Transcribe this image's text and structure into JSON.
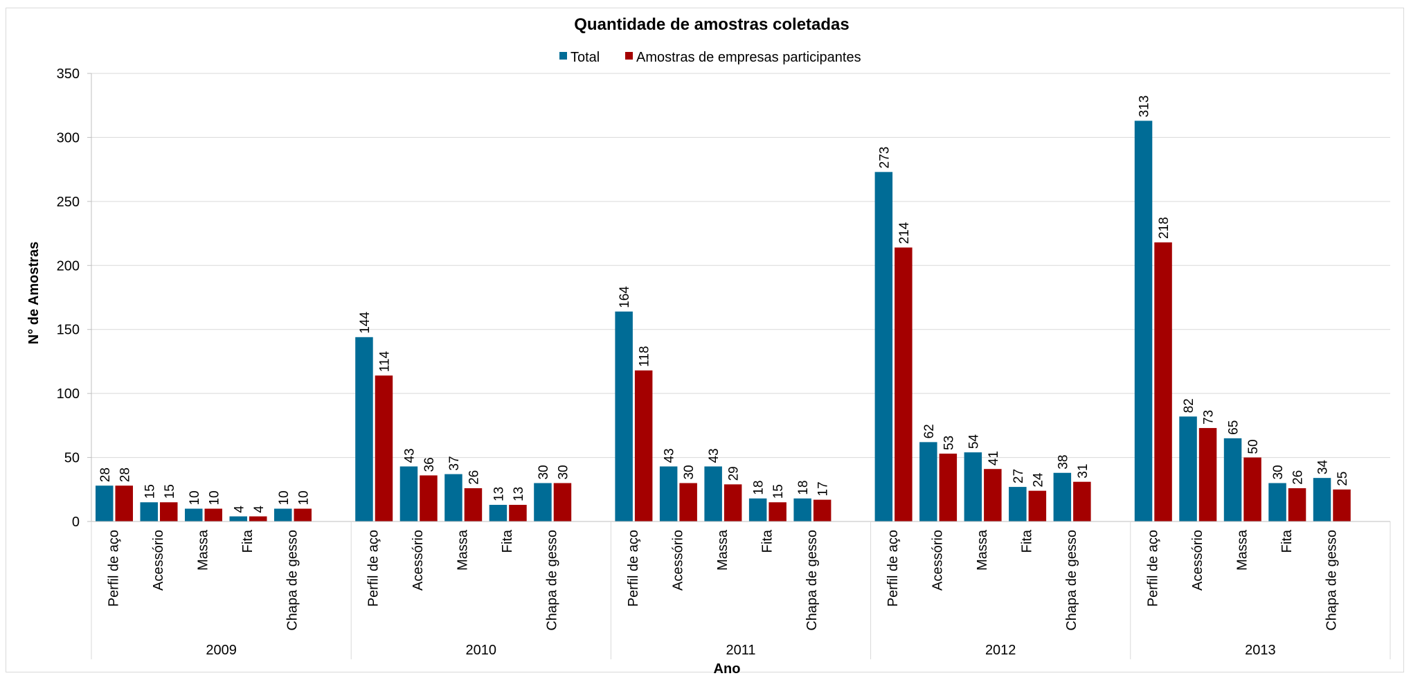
{
  "chart_data": {
    "type": "bar",
    "title": "Quantidade de amostras coletadas",
    "xlabel": "Ano",
    "ylabel": "N° de Amostras",
    "ylim": [
      0,
      350
    ],
    "yticks": [
      "0",
      "50",
      "100",
      "150",
      "200",
      "250",
      "300",
      "350"
    ],
    "grid": true,
    "legend_position": "top",
    "groups": [
      "2009",
      "2010",
      "2011",
      "2012",
      "2013"
    ],
    "categories": [
      "Perfil de aço",
      "Acessório",
      "Massa",
      "Fita",
      "Chapa de gesso"
    ],
    "series": [
      {
        "name": "Total",
        "color": "#006c96",
        "values": [
          [
            28,
            15,
            10,
            4,
            10
          ],
          [
            144,
            43,
            37,
            13,
            30
          ],
          [
            164,
            43,
            43,
            18,
            18
          ],
          [
            273,
            62,
            54,
            27,
            38
          ],
          [
            313,
            82,
            65,
            30,
            34
          ]
        ]
      },
      {
        "name": "Amostras de empresas participantes",
        "color": "#a40000",
        "values": [
          [
            28,
            15,
            10,
            4,
            10
          ],
          [
            114,
            36,
            26,
            13,
            30
          ],
          [
            118,
            30,
            29,
            15,
            17
          ],
          [
            214,
            53,
            41,
            24,
            31
          ],
          [
            218,
            73,
            50,
            26,
            25
          ]
        ]
      }
    ]
  }
}
